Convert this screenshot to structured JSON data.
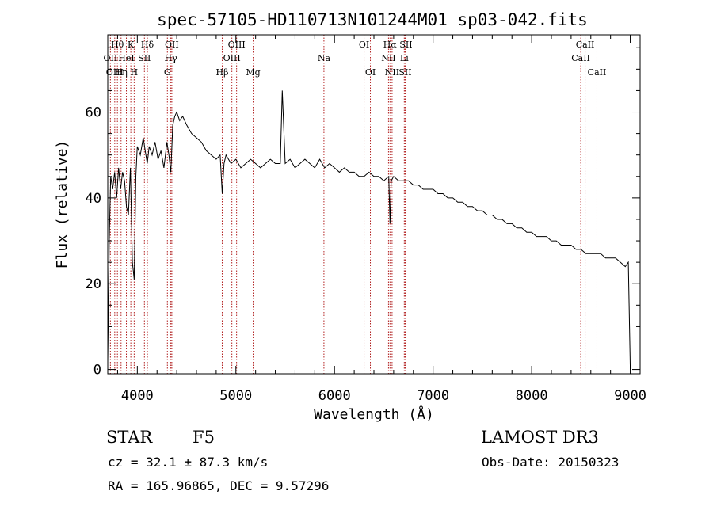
{
  "chart_data": {
    "type": "line",
    "title": "spec-57105-HD110713N101244M01_sp03-042.fits",
    "xlabel": "Wavelength (Å)",
    "ylabel": "Flux (relative)",
    "xlim": [
      3700,
      9100
    ],
    "ylim": [
      -1,
      78
    ],
    "xticks": [
      4000,
      5000,
      6000,
      7000,
      8000,
      9000
    ],
    "yticks": [
      0,
      20,
      40,
      60
    ],
    "series": [
      {
        "name": "flux",
        "x": [
          3700,
          3715,
          3730,
          3750,
          3770,
          3790,
          3810,
          3830,
          3850,
          3870,
          3890,
          3910,
          3930,
          3950,
          3968,
          3985,
          4000,
          4030,
          4060,
          4080,
          4101,
          4120,
          4150,
          4180,
          4210,
          4240,
          4270,
          4300,
          4320,
          4340,
          4360,
          4380,
          4400,
          4430,
          4460,
          4500,
          4550,
          4600,
          4650,
          4700,
          4750,
          4800,
          4840,
          4861,
          4880,
          4900,
          4950,
          5000,
          5050,
          5100,
          5150,
          5200,
          5250,
          5300,
          5350,
          5400,
          5450,
          5470,
          5500,
          5550,
          5600,
          5650,
          5700,
          5750,
          5800,
          5850,
          5900,
          5950,
          6000,
          6050,
          6100,
          6150,
          6200,
          6250,
          6300,
          6350,
          6400,
          6450,
          6500,
          6550,
          6563,
          6575,
          6600,
          6650,
          6700,
          6750,
          6800,
          6850,
          6900,
          6950,
          7000,
          7050,
          7100,
          7150,
          7200,
          7250,
          7300,
          7350,
          7400,
          7450,
          7500,
          7550,
          7600,
          7650,
          7700,
          7750,
          7800,
          7850,
          7900,
          7950,
          8000,
          8050,
          8100,
          8150,
          8200,
          8250,
          8300,
          8350,
          8400,
          8450,
          8500,
          8550,
          8600,
          8650,
          8700,
          8750,
          8800,
          8850,
          8900,
          8950,
          8980,
          9000
        ],
        "y": [
          2,
          30,
          45,
          42,
          46,
          40,
          47,
          42,
          46,
          44,
          38,
          36,
          47,
          25,
          21,
          45,
          52,
          50,
          54,
          51,
          48,
          52,
          50,
          53,
          49,
          51,
          47,
          53,
          50,
          46,
          57,
          59,
          60,
          58,
          59,
          57,
          55,
          54,
          53,
          51,
          50,
          49,
          50,
          41,
          48,
          50,
          48,
          49,
          47,
          48,
          49,
          48,
          47,
          48,
          49,
          48,
          48,
          65,
          48,
          49,
          47,
          48,
          49,
          48,
          47,
          49,
          47,
          48,
          47,
          46,
          47,
          46,
          46,
          45,
          45,
          46,
          45,
          45,
          44,
          45,
          34,
          44,
          45,
          44,
          44,
          44,
          43,
          43,
          42,
          42,
          42,
          41,
          41,
          40,
          40,
          39,
          39,
          38,
          38,
          37,
          37,
          36,
          36,
          35,
          35,
          34,
          34,
          33,
          33,
          32,
          32,
          31,
          31,
          31,
          30,
          30,
          29,
          29,
          29,
          28,
          28,
          27,
          27,
          27,
          27,
          26,
          26,
          26,
          25,
          24,
          25,
          0
        ]
      }
    ],
    "lines_row1": [
      {
        "label": "Hθ",
        "x": 3798
      },
      {
        "label": "K",
        "x": 3934
      },
      {
        "label": "Hδ",
        "x": 4102
      },
      {
        "label": "OII",
        "x": 4350
      },
      {
        "label": "OIII",
        "x": 5007
      },
      {
        "label": "OI",
        "x": 6300
      },
      {
        "label": "Hα",
        "x": 6563
      },
      {
        "label": "SII",
        "x": 6725
      },
      {
        "label": "CaII",
        "x": 8542
      }
    ],
    "lines_row2": [
      {
        "label": "OII",
        "x": 3727
      },
      {
        "label": "HeI",
        "x": 3889
      },
      {
        "label": "SII",
        "x": 4072
      },
      {
        "label": "Hγ",
        "x": 4340
      },
      {
        "label": "OIII",
        "x": 4959
      },
      {
        "label": "Na",
        "x": 5893
      },
      {
        "label": "NII",
        "x": 6548
      },
      {
        "label": "Li",
        "x": 6708
      },
      {
        "label": "CaII",
        "x": 8498
      }
    ],
    "lines_row3": [
      {
        "label": "OIII",
        "x": 3771
      },
      {
        "label": "Hη",
        "x": 3835
      },
      {
        "label": "H",
        "x": 3968
      },
      {
        "label": "G",
        "x": 4305
      },
      {
        "label": "Hβ",
        "x": 4861
      },
      {
        "label": "Mg",
        "x": 5175
      },
      {
        "label": "OI",
        "x": 6364
      },
      {
        "label": "NII",
        "x": 6584
      },
      {
        "label": "SII",
        "x": 6717
      },
      {
        "label": "CaII",
        "x": 8662
      }
    ],
    "line_positions": [
      3727,
      3771,
      3798,
      3835,
      3889,
      3934,
      3968,
      4072,
      4102,
      4305,
      4340,
      4350,
      4861,
      4959,
      5007,
      5175,
      5893,
      6300,
      6364,
      6548,
      6563,
      6584,
      6708,
      6717,
      6725,
      8498,
      8542,
      8662
    ]
  },
  "info": {
    "object_class": "STAR",
    "subclass": "F5",
    "survey": "LAMOST DR3",
    "redshift": "cz = 32.1 ± 87.3 km/s",
    "obs_date": "Obs-Date: 20150323",
    "coords": "RA = 165.96865, DEC =    9.57296"
  }
}
